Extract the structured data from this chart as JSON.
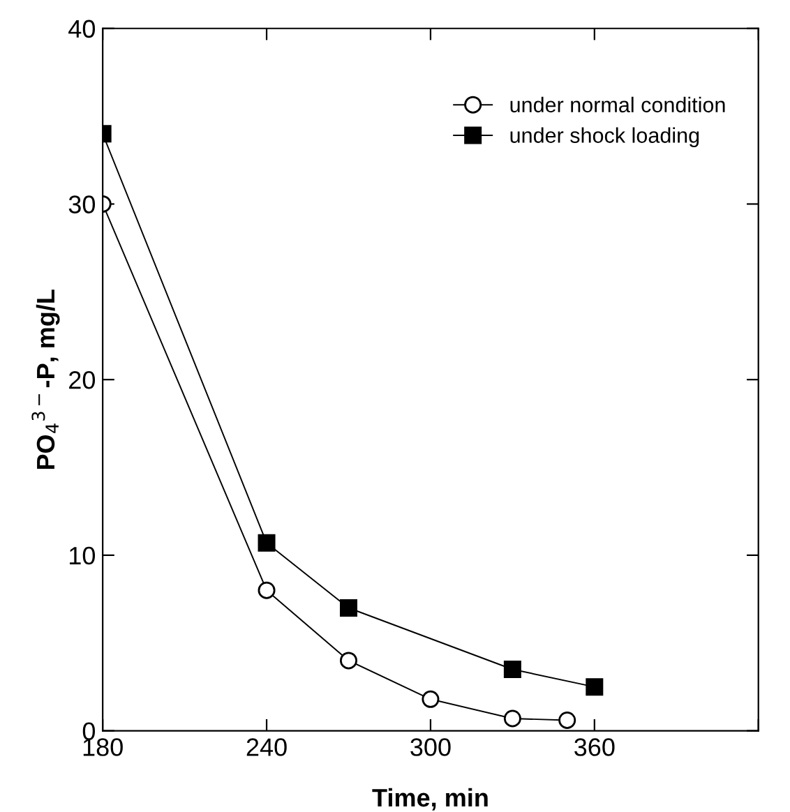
{
  "chart_data": {
    "type": "line",
    "xlabel": "Time, min",
    "ylabel": "PO$_{4}$$^{3−}$-P, mg/L",
    "xlim": [
      180,
      420
    ],
    "xticks": [
      180,
      240,
      300,
      360,
      {
        "value": 420,
        "label": null
      }
    ],
    "ylim": [
      0,
      40
    ],
    "yticks": [
      0,
      10,
      20,
      30,
      40
    ],
    "grid": false,
    "legend": "top right",
    "line_style": "solid",
    "series": [
      {
        "name": "under normal condition",
        "color": "#000000",
        "marker": "circle",
        "x": [
          180,
          240,
          270,
          300,
          330,
          350
        ],
        "values": [
          30,
          8,
          4,
          1.8,
          0.7,
          0.6
        ]
      },
      {
        "name": "under shock loading",
        "color": "#000000",
        "marker": "square",
        "x": [
          180,
          240,
          270,
          330,
          360
        ],
        "values": [
          34,
          10.7,
          7,
          3.5,
          2.5
        ]
      }
    ]
  }
}
